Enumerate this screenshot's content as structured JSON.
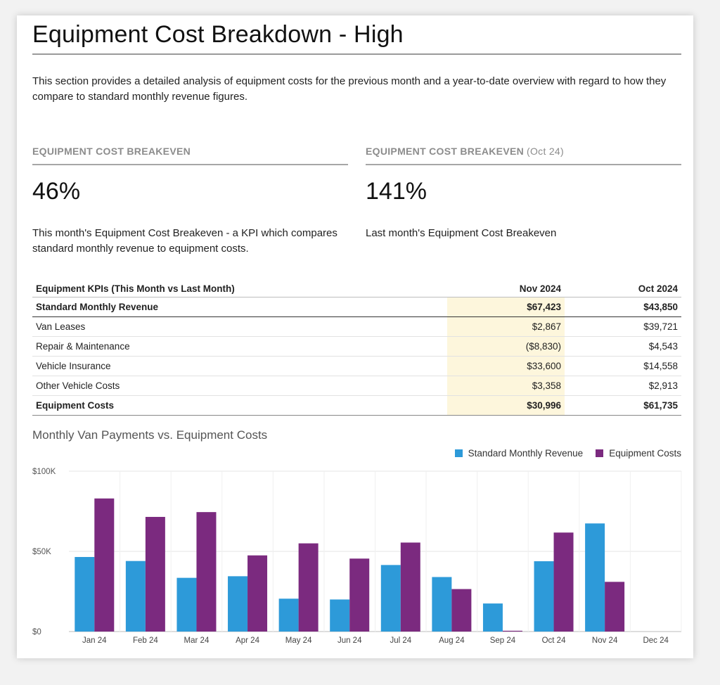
{
  "page": {
    "title": "Equipment Cost Breakdown - High",
    "intro": "This section provides a detailed analysis of equipment costs for the previous month and a year-to-date overview with regard to how they compare to standard monthly revenue figures."
  },
  "kpis": [
    {
      "label": "EQUIPMENT COST BREAKEVEN",
      "sub": "",
      "value": "46%",
      "description": "This month's Equipment Cost Breakeven - a KPI which compares standard monthly revenue to equipment costs."
    },
    {
      "label": "EQUIPMENT COST BREAKEVEN",
      "sub": "(Oct 24)",
      "value": "141%",
      "description": "Last month's Equipment Cost Breakeven"
    }
  ],
  "table": {
    "header": [
      "Equipment KPIs (This Month vs Last Month)",
      "Nov 2024",
      "Oct 2024"
    ],
    "rows": [
      [
        "Standard Monthly Revenue",
        "$67,423",
        "$43,850"
      ],
      [
        "Van Leases",
        "$2,867",
        "$39,721"
      ],
      [
        "Repair & Maintenance",
        "($8,830)",
        "$4,543"
      ],
      [
        "Vehicle Insurance",
        "$33,600",
        "$14,558"
      ],
      [
        "Other Vehicle Costs",
        "$3,358",
        "$2,913"
      ],
      [
        "Equipment Costs",
        "$30,996",
        "$61,735"
      ]
    ]
  },
  "colors": {
    "revenue": "#2d9ad9",
    "costs": "#7b2a7f",
    "highlight": "#fdf6dc"
  },
  "chart_data": {
    "type": "bar",
    "title": "Monthly Van Payments vs. Equipment Costs",
    "legend_position": "top-right",
    "categories": [
      "Jan 24",
      "Feb 24",
      "Mar 24",
      "Apr 24",
      "May 24",
      "Jun 24",
      "Jul 24",
      "Aug 24",
      "Sep 24",
      "Oct 24",
      "Nov 24",
      "Dec 24"
    ],
    "series": [
      {
        "name": "Standard Monthly Revenue",
        "values": [
          46500,
          44000,
          33500,
          34500,
          20500,
          20000,
          41500,
          34000,
          17500,
          43850,
          67423,
          0
        ]
      },
      {
        "name": "Equipment Costs",
        "values": [
          83000,
          71500,
          74500,
          47500,
          55000,
          45500,
          55500,
          26500,
          500,
          61735,
          30996,
          0
        ]
      }
    ],
    "ylim": [
      0,
      100000
    ],
    "yticks": [
      {
        "value": 0,
        "label": "$0"
      },
      {
        "value": 50000,
        "label": "$50K"
      },
      {
        "value": 100000,
        "label": "$100K"
      }
    ],
    "grid": true
  }
}
